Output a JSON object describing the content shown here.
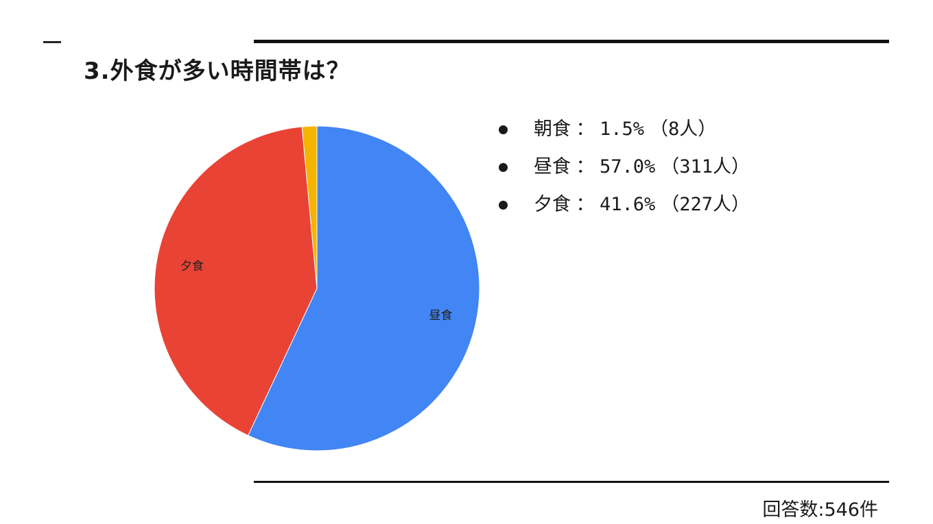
{
  "title": "3.外食が多い時間帯は？",
  "chart_data": {
    "type": "pie",
    "categories": [
      "朝食",
      "昼食",
      "夕食"
    ],
    "values": [
      8,
      311,
      227
    ],
    "percentages": [
      1.5,
      57.0,
      41.6
    ],
    "colors": [
      "#F4B400",
      "#4285F4",
      "#E94335"
    ],
    "slice_labels": [
      "",
      "昼食",
      "夕食"
    ],
    "start_angle_deg": -90,
    "direction": "clockwise",
    "slice_order": [
      "昼食",
      "夕食",
      "朝食"
    ]
  },
  "legend": {
    "separator": "：",
    "items": [
      {
        "name": "朝食",
        "pct": "1.5%",
        "count": "（8人）"
      },
      {
        "name": "昼食",
        "pct": "57.0%",
        "count": "（311人）"
      },
      {
        "name": "夕食",
        "pct": "41.6%",
        "count": "（227人）"
      }
    ]
  },
  "footer": {
    "responses": "回答数:546件"
  }
}
